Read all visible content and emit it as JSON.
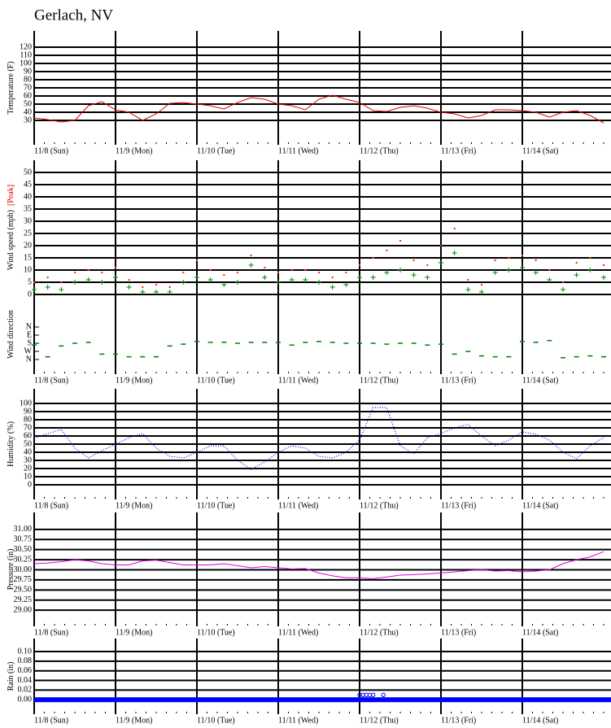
{
  "title": "Gerlach, NV",
  "chart_data": [
    {
      "type": "line",
      "ylabel": "Temperature (F)",
      "xlim": [
        0,
        168
      ],
      "xticks": [
        {
          "value": 0,
          "label": "11/8 (Sun)"
        },
        {
          "value": 24,
          "label": "11/9 (Mon)"
        },
        {
          "value": 48,
          "label": "11/10 (Tue)"
        },
        {
          "value": 72,
          "label": "11/11 (Wed)"
        },
        {
          "value": 96,
          "label": "11/12 (Thu)"
        },
        {
          "value": 120,
          "label": "11/13 (Fri)"
        },
        {
          "value": 144,
          "label": "11/14 (Sat)"
        }
      ],
      "ylim": [
        0,
        140
      ],
      "yticks": [
        30,
        40,
        50,
        60,
        70,
        80,
        90,
        100,
        110,
        120
      ],
      "x": [
        0,
        4,
        8,
        12,
        16,
        20,
        24,
        28,
        32,
        36,
        40,
        44,
        48,
        52,
        56,
        60,
        64,
        68,
        72,
        76,
        80,
        84,
        88,
        92,
        96,
        100,
        104,
        108,
        112,
        116,
        120,
        124,
        128,
        132,
        136,
        140,
        144,
        148,
        152,
        156,
        160,
        164,
        168
      ],
      "series": [
        {
          "color": "#e00000",
          "style": "solid",
          "values": [
            33,
            31,
            28,
            30,
            48,
            53,
            43,
            40,
            30,
            38,
            51,
            52,
            50,
            48,
            44,
            52,
            58,
            56,
            50,
            48,
            43,
            56,
            61,
            56,
            52,
            42,
            41,
            46,
            48,
            45,
            40,
            38,
            33,
            36,
            43,
            43,
            42,
            40,
            34,
            40,
            42,
            36,
            27
          ]
        }
      ]
    },
    {
      "type": "scatter",
      "ylabel": "Wind speed (mph)",
      "ylabel_note": "[Peak]",
      "ylabel_note_color": "#e00000",
      "show_xtick_labels": false,
      "xlim": [
        0,
        168
      ],
      "xticks": [
        0,
        24,
        48,
        72,
        96,
        120,
        144
      ],
      "ylim": [
        0,
        55
      ],
      "yticks": [
        0,
        5,
        10,
        15,
        20,
        25,
        30,
        35,
        40,
        45,
        50
      ],
      "x": [
        0,
        4,
        8,
        12,
        16,
        20,
        24,
        28,
        32,
        36,
        40,
        44,
        48,
        52,
        56,
        60,
        64,
        68,
        72,
        76,
        80,
        84,
        88,
        92,
        96,
        100,
        104,
        108,
        112,
        116,
        120,
        124,
        128,
        132,
        136,
        140,
        144,
        148,
        152,
        156,
        160,
        164,
        168
      ],
      "series": [
        {
          "color": "#ff2020",
          "marker": "dot",
          "values": [
            5,
            7,
            5,
            9,
            10,
            9,
            11,
            6,
            3,
            4,
            3,
            9,
            14,
            10,
            8,
            9,
            16,
            11,
            9,
            10,
            10,
            9,
            7,
            9,
            12,
            15,
            18,
            22,
            14,
            12,
            20,
            27,
            6,
            4,
            14,
            15,
            16,
            14,
            10,
            5,
            13,
            15,
            12
          ]
        },
        {
          "color": "#008000",
          "marker": "plus",
          "values": [
            2,
            3,
            2,
            5,
            6,
            5,
            7,
            3,
            1,
            1,
            1,
            5,
            7,
            6,
            4,
            5,
            12,
            7,
            5,
            6,
            6,
            5,
            3,
            4,
            7,
            7,
            9,
            10,
            8,
            7,
            13,
            17,
            2,
            1,
            9,
            10,
            11,
            9,
            6,
            2,
            8,
            10,
            7
          ]
        }
      ]
    },
    {
      "type": "scatter",
      "ylabel": "Wind direction",
      "xlim": [
        0,
        168
      ],
      "xticks": [
        {
          "value": 0,
          "label": "11/8 (Sun)"
        },
        {
          "value": 24,
          "label": "11/9 (Mon)"
        },
        {
          "value": 48,
          "label": "11/10 (Tue)"
        },
        {
          "value": 72,
          "label": "11/11 (Wed)"
        },
        {
          "value": 96,
          "label": "11/12 (Thu)"
        },
        {
          "value": 120,
          "label": "11/13 (Fri)"
        },
        {
          "value": 144,
          "label": "11/14 (Sat)"
        }
      ],
      "ylim": [
        522,
        -360
      ],
      "yticks": [
        {
          "value": 0,
          "label": "N"
        },
        {
          "value": 90,
          "label": "E"
        },
        {
          "value": 180,
          "label": "S"
        },
        {
          "value": 270,
          "label": "W"
        },
        {
          "value": 360,
          "label": "N"
        }
      ],
      "grid": false,
      "x": [
        0,
        4,
        8,
        12,
        16,
        20,
        24,
        28,
        32,
        36,
        40,
        44,
        48,
        52,
        56,
        60,
        64,
        68,
        72,
        76,
        80,
        84,
        88,
        92,
        96,
        100,
        104,
        108,
        112,
        116,
        120,
        124,
        128,
        132,
        136,
        140,
        144,
        148,
        152,
        156,
        160,
        164,
        168
      ],
      "series": [
        {
          "color": "#008000",
          "marker": "dash",
          "values": [
            200,
            330,
            210,
            180,
            170,
            300,
            300,
            330,
            330,
            330,
            210,
            190,
            160,
            170,
            170,
            180,
            170,
            170,
            170,
            200,
            170,
            160,
            170,
            180,
            180,
            180,
            190,
            180,
            180,
            200,
            190,
            300,
            270,
            320,
            330,
            330,
            160,
            170,
            150,
            340,
            330,
            320,
            330
          ]
        }
      ]
    },
    {
      "type": "line",
      "ylabel": "Humidity (%)",
      "xlim": [
        0,
        168
      ],
      "xticks": [
        {
          "value": 0,
          "label": "11/8 (Sun)"
        },
        {
          "value": 24,
          "label": "11/9 (Mon)"
        },
        {
          "value": 48,
          "label": "11/10 (Tue)"
        },
        {
          "value": 72,
          "label": "11/11 (Wed)"
        },
        {
          "value": 96,
          "label": "11/12 (Thu)"
        },
        {
          "value": 120,
          "label": "11/13 (Fri)"
        },
        {
          "value": 144,
          "label": "11/14 (Sat)"
        }
      ],
      "ylim": [
        -18,
        118
      ],
      "yticks": [
        0,
        10,
        20,
        30,
        40,
        50,
        60,
        70,
        80,
        90,
        100
      ],
      "x": [
        0,
        4,
        8,
        12,
        16,
        20,
        24,
        28,
        32,
        36,
        40,
        44,
        48,
        52,
        56,
        60,
        64,
        68,
        72,
        76,
        80,
        84,
        88,
        92,
        96,
        100,
        104,
        108,
        112,
        116,
        120,
        124,
        128,
        132,
        136,
        140,
        144,
        148,
        152,
        156,
        160,
        164,
        168
      ],
      "series": [
        {
          "color": "#0000ff",
          "style": "dotted",
          "values": [
            57,
            63,
            68,
            45,
            33,
            42,
            50,
            58,
            63,
            45,
            35,
            33,
            40,
            48,
            48,
            30,
            19,
            28,
            40,
            48,
            45,
            35,
            33,
            40,
            55,
            95,
            95,
            48,
            38,
            58,
            63,
            70,
            74,
            60,
            48,
            55,
            65,
            62,
            55,
            40,
            32,
            48,
            58
          ]
        }
      ]
    },
    {
      "type": "line",
      "ylabel": "Pressure (in)",
      "xlim": [
        0,
        168
      ],
      "xticks": [
        {
          "value": 0,
          "label": "11/8 (Sun)"
        },
        {
          "value": 24,
          "label": "11/9 (Mon)"
        },
        {
          "value": 48,
          "label": "11/10 (Tue)"
        },
        {
          "value": 72,
          "label": "11/11 (Wed)"
        },
        {
          "value": 96,
          "label": "11/12 (Thu)"
        },
        {
          "value": 120,
          "label": "11/13 (Fri)"
        },
        {
          "value": 144,
          "label": "11/14 (Sat)"
        }
      ],
      "ylim": [
        28.6,
        31.42
      ],
      "yticks": [
        {
          "value": 29,
          "label": "29.00"
        },
        {
          "value": 29.25,
          "label": "29.25"
        },
        {
          "value": 29.5,
          "label": "29.50"
        },
        {
          "value": 29.75,
          "label": "29.75"
        },
        {
          "value": 30,
          "label": "30.00"
        },
        {
          "value": 30.25,
          "label": "30.25"
        },
        {
          "value": 30.5,
          "label": "30.50"
        },
        {
          "value": 30.75,
          "label": "30.75"
        },
        {
          "value": 31,
          "label": "31.00"
        }
      ],
      "x": [
        0,
        4,
        8,
        12,
        16,
        20,
        24,
        28,
        32,
        36,
        40,
        44,
        48,
        52,
        56,
        60,
        64,
        68,
        72,
        76,
        80,
        84,
        88,
        92,
        96,
        100,
        104,
        108,
        112,
        116,
        120,
        124,
        128,
        132,
        136,
        140,
        144,
        148,
        152,
        156,
        160,
        164,
        168
      ],
      "series": [
        {
          "color": "#e000e0",
          "style": "solid",
          "values": [
            30.15,
            30.17,
            30.2,
            30.25,
            30.22,
            30.15,
            30.12,
            30.12,
            30.22,
            30.24,
            30.18,
            30.12,
            30.12,
            30.12,
            30.15,
            30.1,
            30.05,
            30.08,
            30.05,
            30.02,
            30.03,
            29.92,
            29.85,
            29.8,
            29.8,
            29.78,
            29.82,
            29.87,
            29.88,
            29.9,
            29.92,
            29.95,
            29.98,
            30,
            29.97,
            29.98,
            29.95,
            29.97,
            30,
            30.15,
            30.25,
            30.32,
            30.45
          ]
        }
      ]
    },
    {
      "type": "line",
      "ylabel": "Rain (in)",
      "xlim": [
        0,
        168
      ],
      "xticks": [
        {
          "value": 0,
          "label": "11/8 (Sun)"
        },
        {
          "value": 24,
          "label": "11/9 (Mon)"
        },
        {
          "value": 48,
          "label": "11/10 (Tue)"
        },
        {
          "value": 72,
          "label": "11/11 (Wed)"
        },
        {
          "value": 96,
          "label": "11/12 (Thu)"
        },
        {
          "value": 120,
          "label": "11/13 (Fri)"
        },
        {
          "value": 144,
          "label": "11/14 (Sat)"
        }
      ],
      "ylim": [
        -0.03,
        0.127
      ],
      "yticks": [
        {
          "value": 0,
          "label": "0.00"
        },
        {
          "value": 0.02,
          "label": "0.02"
        },
        {
          "value": 0.04,
          "label": "0.04"
        },
        {
          "value": 0.06,
          "label": "0.06"
        },
        {
          "value": 0.08,
          "label": "0.08"
        },
        {
          "value": 0.1,
          "label": "0.10"
        }
      ],
      "x": [
        0,
        171
      ],
      "series": [
        {
          "color": "#0000ff",
          "style": "thick",
          "values": [
            0,
            0
          ]
        },
        {
          "color": "#0000ff",
          "marker": "circle",
          "x": [
            96,
            97,
            98,
            99,
            100,
            103
          ],
          "values": [
            0.01,
            0.01,
            0.01,
            0.01,
            0.01,
            0.01
          ]
        }
      ]
    }
  ]
}
